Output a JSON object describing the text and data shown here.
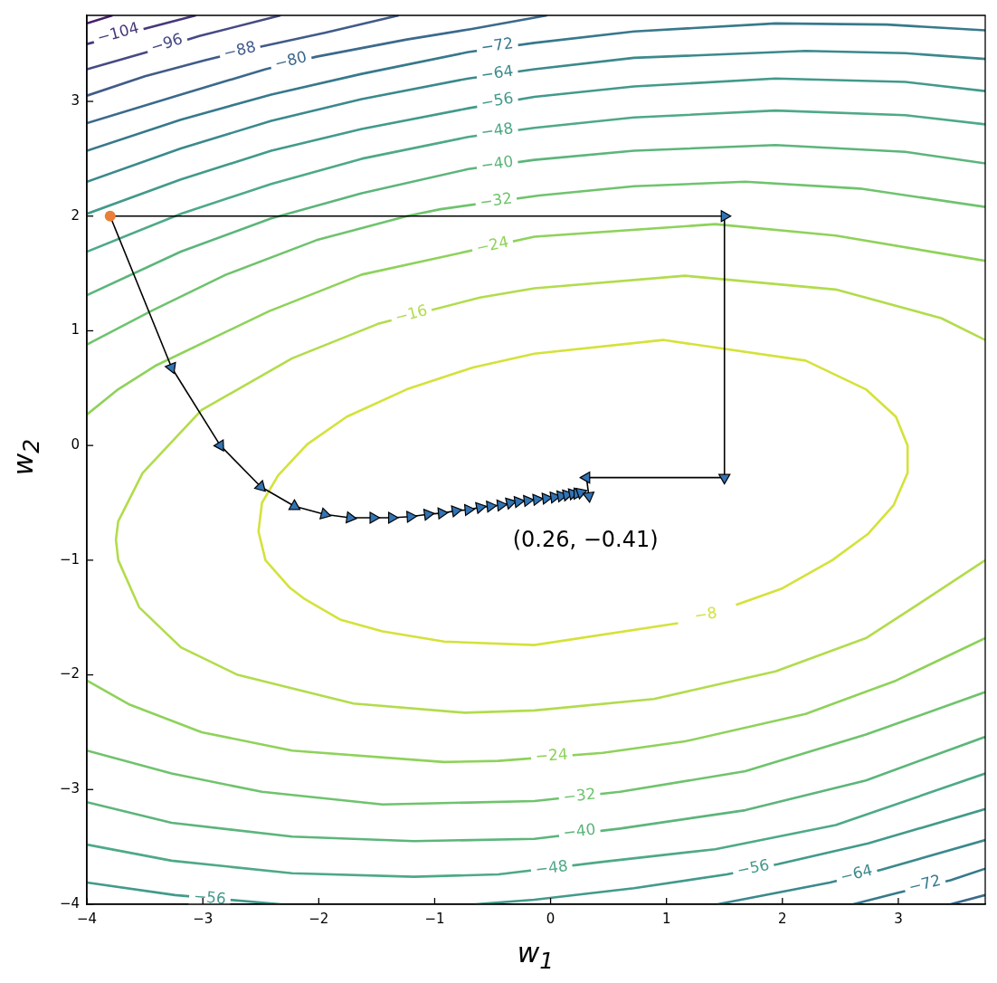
{
  "chart_data": {
    "type": "line",
    "xlabel": "w$_{1}$",
    "ylabel": "w$_{2}$",
    "xlim": [
      -4,
      3.75
    ],
    "ylim": [
      -4,
      3.75
    ],
    "xticks": [
      -4,
      -3,
      -2,
      -1,
      0,
      1,
      2,
      3
    ],
    "yticks": [
      -4,
      -3,
      -2,
      -1,
      0,
      1,
      2,
      3
    ],
    "marker": "none",
    "series": [
      {
        "color": "#46206b",
        "x": [
          -4,
          -3.78
        ],
        "values": [
          3.68,
          3.75
        ]
      },
      {
        "color": "#48387a",
        "x": [
          -4,
          -3.48,
          -3.06
        ],
        "values": [
          3.5,
          3.64,
          3.75
        ]
      },
      {
        "color": "#464a83",
        "x": [
          -4,
          -3.48,
          -3.03,
          -2.33
        ],
        "values": [
          3.28,
          3.43,
          3.57,
          3.75
        ]
      },
      {
        "color": "#415b89",
        "x": [
          -4,
          -3.5,
          -2.98,
          -2.49,
          -1.94,
          -1.31
        ],
        "values": [
          3.05,
          3.22,
          3.36,
          3.48,
          3.6,
          3.75
        ]
      },
      {
        "color": "#3b6a8c",
        "x": [
          -4,
          -3.19,
          -2.46,
          -2.02,
          -1.24,
          -0.69,
          -0.03
        ],
        "values": [
          2.81,
          3.06,
          3.28,
          3.39,
          3.54,
          3.63,
          3.75
        ]
      },
      {
        "color": "#37798c",
        "x": [
          -4,
          -3.19,
          -2.41,
          -1.63,
          -0.71,
          -0.14,
          0.72,
          1.94,
          2.9,
          3.75
        ],
        "values": [
          2.57,
          2.84,
          3.06,
          3.24,
          3.43,
          3.51,
          3.61,
          3.68,
          3.67,
          3.62
        ]
      },
      {
        "color": "#3b898d",
        "x": [
          -4,
          -3.19,
          -2.41,
          -1.63,
          -0.71,
          -0.14,
          0.72,
          2.2,
          3.06,
          3.75
        ],
        "values": [
          2.3,
          2.59,
          2.83,
          3.02,
          3.2,
          3.28,
          3.38,
          3.44,
          3.42,
          3.37
        ]
      },
      {
        "color": "#429a8b",
        "x": [
          -4,
          -3.19,
          -2.41,
          -1.63,
          -0.71,
          -0.14,
          0.72,
          1.94,
          3.06,
          3.75
        ],
        "values": [
          2.02,
          2.32,
          2.57,
          2.76,
          2.94,
          3.04,
          3.13,
          3.2,
          3.17,
          3.09
        ]
      },
      {
        "color": "#4ea987",
        "x": [
          -4,
          -3.19,
          -2.41,
          -1.63,
          -0.71,
          -0.14,
          0.72,
          1.94,
          3.06,
          3.75
        ],
        "values": [
          1.69,
          2.02,
          2.28,
          2.5,
          2.69,
          2.77,
          2.86,
          2.92,
          2.88,
          2.8
        ]
      },
      {
        "color": "#5cb57b",
        "x": [
          -4,
          -3.19,
          -2.41,
          -1.63,
          -0.71,
          -0.14,
          0.72,
          1.94,
          3.06,
          3.75
        ],
        "values": [
          1.31,
          1.69,
          1.98,
          2.2,
          2.41,
          2.49,
          2.57,
          2.62,
          2.56,
          2.46
        ]
      },
      {
        "color": "#6fc36d",
        "x": [
          -4,
          -3.45,
          -2.8,
          -2.02,
          -1.24,
          -0.95,
          -0.1,
          0.72,
          1.68,
          2.67,
          3.75
        ],
        "values": [
          0.88,
          1.17,
          1.49,
          1.79,
          2.0,
          2.06,
          2.18,
          2.26,
          2.3,
          2.24,
          2.08
        ]
      },
      {
        "color": "#8ed25a",
        "x": [
          -4,
          -3.73,
          -3.4,
          -2.43,
          -1.63,
          -0.14,
          1.42,
          2.46,
          3.75
        ],
        "values": [
          0.27,
          0.49,
          0.7,
          1.17,
          1.49,
          1.82,
          1.93,
          1.83,
          1.61
        ]
      },
      {
        "color": "#b2dc4c",
        "x": [
          3.75,
          3.37,
          2.46,
          1.16,
          -0.14,
          -0.61,
          -1.49,
          -2.23,
          -3.01,
          -3.52,
          -3.73,
          -3.75,
          -3.73,
          -3.55,
          -3.19,
          -2.7,
          -1.7,
          -0.74,
          -0.14,
          0.89,
          1.94,
          2.72,
          3.24,
          3.75
        ],
        "values": [
          0.92,
          1.11,
          1.36,
          1.48,
          1.37,
          1.29,
          1.06,
          0.76,
          0.31,
          -0.24,
          -0.66,
          -0.82,
          -1.0,
          -1.41,
          -1.76,
          -2.0,
          -2.25,
          -2.33,
          -2.31,
          -2.21,
          -1.97,
          -1.68,
          -1.34,
          -1.0
        ]
      },
      {
        "color": "#d4e23a",
        "x": [
          1.6,
          1.99,
          2.43,
          2.74,
          2.96,
          3.08,
          3.08,
          2.98,
          2.72,
          2.2,
          0.97,
          -0.14,
          -0.67,
          -1.24,
          -1.76,
          -2.1,
          -2.35,
          -2.49,
          -2.52,
          -2.46,
          -2.25,
          -2.12,
          -1.81,
          -1.45,
          -0.92,
          -0.14,
          1.1
        ],
        "values": [
          -1.39,
          -1.25,
          -1.0,
          -0.77,
          -0.52,
          -0.24,
          0.0,
          0.25,
          0.49,
          0.74,
          0.92,
          0.8,
          0.68,
          0.49,
          0.25,
          0.01,
          -0.26,
          -0.5,
          -0.75,
          -1.0,
          -1.24,
          -1.34,
          -1.52,
          -1.62,
          -1.71,
          -1.74,
          -1.55
        ]
      },
      {
        "color": "#8ed25a",
        "x": [
          -4,
          -3.63,
          -3.01,
          -2.23,
          -0.92,
          -0.45,
          0.45,
          1.16,
          2.2,
          2.98,
          3.75
        ],
        "values": [
          -2.05,
          -2.26,
          -2.5,
          -2.66,
          -2.76,
          -2.75,
          -2.68,
          -2.58,
          -2.34,
          -2.05,
          -1.68
        ]
      },
      {
        "color": "#6fc36d",
        "x": [
          -4,
          -3.27,
          -2.49,
          -1.45,
          -0.14,
          0.6,
          1.68,
          2.72,
          3.75
        ],
        "values": [
          -2.66,
          -2.86,
          -3.02,
          -3.13,
          -3.1,
          -3.02,
          -2.84,
          -2.52,
          -2.15
        ]
      },
      {
        "color": "#5cb57b",
        "x": [
          -4,
          -3.27,
          -2.23,
          -1.18,
          -0.14,
          0.6,
          1.68,
          2.72,
          3.75
        ],
        "values": [
          -3.11,
          -3.29,
          -3.41,
          -3.45,
          -3.43,
          -3.34,
          -3.18,
          -2.92,
          -2.54
        ]
      },
      {
        "color": "#4ea987",
        "x": [
          -4,
          -3.27,
          -2.23,
          -1.18,
          -0.45,
          0.45,
          1.42,
          2.46,
          3.75
        ],
        "values": [
          -3.48,
          -3.62,
          -3.73,
          -3.76,
          -3.74,
          -3.63,
          -3.52,
          -3.31,
          -2.86
        ]
      },
      {
        "color": "#429a8b",
        "x": [
          -4,
          -3.24,
          -2.33
        ],
        "values": [
          -3.81,
          -3.92,
          -4
        ]
      },
      {
        "color": "#429a8b",
        "x": [
          -0.65,
          -0.14,
          0.72,
          1.52,
          1.96,
          2.74,
          3.75
        ],
        "values": [
          -4,
          -3.96,
          -3.86,
          -3.74,
          -3.65,
          -3.47,
          -3.17
        ]
      },
      {
        "color": "#3b898d",
        "x": [
          1.44,
          2.41,
          2.85,
          3.75
        ],
        "values": [
          -4,
          -3.81,
          -3.7,
          -3.44
        ]
      },
      {
        "color": "#37798c",
        "x": [
          2.61,
          3.0,
          3.45,
          3.75
        ],
        "values": [
          -4,
          -3.9,
          -3.79,
          -3.69
        ]
      },
      {
        "color": "#3b6a8c",
        "x": [
          3.45,
          3.75
        ],
        "values": [
          -4,
          -3.92
        ]
      },
      {
        "color": "#000000",
        "marker": "triangle",
        "x": [
          -3.8,
          -3.27,
          -2.85,
          -2.5,
          -2.21,
          -1.95,
          -1.73,
          -1.53,
          -1.37,
          -1.21,
          -1.06,
          -0.94,
          -0.82,
          -0.71,
          -0.61,
          -0.52,
          -0.43,
          -0.35,
          -0.28,
          -0.2,
          -0.12,
          -0.04,
          0.03,
          0.09,
          0.14,
          0.19,
          0.23,
          0.26
        ],
        "values": [
          2,
          0.68,
          0,
          -0.36,
          -0.53,
          -0.6,
          -0.63,
          -0.63,
          -0.63,
          -0.62,
          -0.6,
          -0.59,
          -0.57,
          -0.56,
          -0.54,
          -0.53,
          -0.52,
          -0.5,
          -0.49,
          -0.48,
          -0.47,
          -0.46,
          -0.45,
          -0.44,
          -0.43,
          -0.42,
          -0.42,
          -0.41
        ],
        "colors": [
          null,
          "#3274b4",
          "#3274b4",
          "#3274b4",
          "#3274b4",
          "#3274b4",
          "#3274b4",
          "#3274b4",
          "#3274b4",
          "#3274b4",
          "#3274b4",
          "#3274b4",
          "#3274b4",
          "#3274b4",
          "#3274b4",
          "#3274b4",
          "#3274b4",
          "#3274b4",
          "#3274b4",
          "#3274b4",
          "#3274b4",
          "#3274b4",
          "#3274b4",
          "#3274b4",
          "#3274b4",
          "#3274b4",
          "#3274b4",
          "#3274b4"
        ]
      },
      {
        "color": "#000000",
        "marker": "triangle",
        "x": [
          -3.8,
          1.5,
          1.5,
          0.31,
          0.33
        ],
        "values": [
          2,
          2,
          -0.28,
          -0.28,
          -0.44
        ],
        "colors": [
          null,
          "#3274b4",
          "#3274b4",
          "#3274b4",
          "#3274b4"
        ]
      },
      {
        "type": "scatter",
        "marker": "circle",
        "color": "#e8803a",
        "x": [
          -3.8
        ],
        "values": [
          2
        ]
      }
    ],
    "annotations": [
      {
        "text": "−104",
        "x": -3.73,
        "y": 3.59
      },
      {
        "text": "−96",
        "x": -3.31,
        "y": 3.5
      },
      {
        "text": "−88",
        "x": -2.68,
        "y": 3.44
      },
      {
        "text": "−80",
        "x": -2.24,
        "y": 3.35
      },
      {
        "text": "−72",
        "x": -0.46,
        "y": 3.48
      },
      {
        "text": "−64",
        "x": -0.46,
        "y": 3.24
      },
      {
        "text": "−56",
        "x": -0.46,
        "y": 3.0
      },
      {
        "text": "−48",
        "x": -0.46,
        "y": 2.74
      },
      {
        "text": "−40",
        "x": -0.46,
        "y": 2.45
      },
      {
        "text": "−32",
        "x": -0.47,
        "y": 2.13
      },
      {
        "text": "−24",
        "x": -0.5,
        "y": 1.74
      },
      {
        "text": "−16",
        "x": -1.2,
        "y": 1.14
      },
      {
        "text": "−8",
        "x": 1.34,
        "y": -1.48
      },
      {
        "text": "−24",
        "x": 0.01,
        "y": -2.71
      },
      {
        "text": "−32",
        "x": 0.25,
        "y": -3.06
      },
      {
        "text": "−40",
        "x": 0.25,
        "y": -3.37
      },
      {
        "text": "−48",
        "x": 0.01,
        "y": -3.69
      },
      {
        "text": "−56",
        "x": -2.94,
        "y": -3.95
      },
      {
        "text": "−56",
        "x": 1.75,
        "y": -3.69
      },
      {
        "text": "−64",
        "x": 2.64,
        "y": -3.74
      },
      {
        "text": "−72",
        "x": 3.23,
        "y": -3.83
      },
      "(0.26, −0.41)"
    ]
  }
}
